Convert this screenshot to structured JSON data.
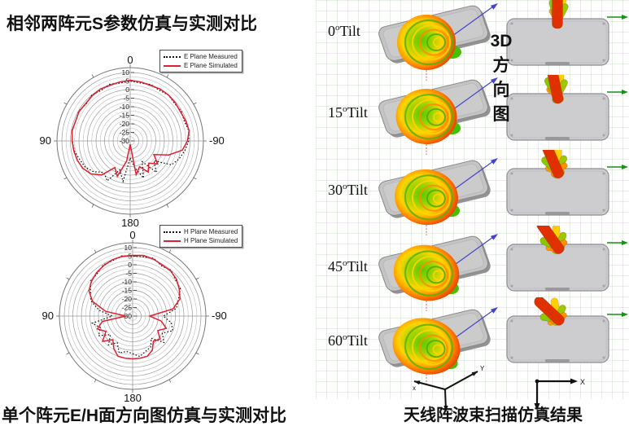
{
  "left": {
    "title": "相邻两阵元S参数仿真与实测对比",
    "caption": "单个阵元E/H面方向图仿真与实测对比"
  },
  "right": {
    "vertical_label": [
      "3D",
      "方",
      "向",
      "图"
    ],
    "caption": "天线阵波束扫描仿真结果",
    "tilt_angles": [
      "0",
      "15",
      "30",
      "45",
      "60"
    ],
    "degree_mark": "o",
    "tilt_suffix": "Tilt",
    "axes": {
      "iso": {
        "x": "x",
        "y": "Y",
        "z": "z"
      },
      "plan": {
        "x": "X",
        "y": "Y"
      },
      "beam_axis": "x"
    }
  },
  "colors": {
    "measured": "#111111",
    "simulated": "#e02030",
    "phone_gray": "#c4c4c4",
    "beam_hot": "#e03000",
    "beam_warm": "#ffd000",
    "beam_cool": "#8cc800",
    "arrow_blue": "#4444cc",
    "arrow_green": "#169016"
  },
  "chart_data": [
    {
      "type": "polar-line",
      "plane": "E",
      "angle_labels": {
        "top": "0",
        "left": "90",
        "right": "-90",
        "bottom": "180"
      },
      "radial_ticks": [
        10,
        5,
        0,
        -5,
        -10,
        -15,
        -20,
        -25,
        -30
      ],
      "r_range": [
        -30,
        10
      ],
      "grid_step_db": 2.5,
      "legend": [
        {
          "label": "E Plane Measured",
          "color": "#111111",
          "style": "dotted"
        },
        {
          "label": "E Plane Simulated",
          "color": "#e02030",
          "style": "solid"
        }
      ],
      "series": [
        {
          "name": "E Plane Measured",
          "points": [
            [
              -180,
              -20
            ],
            [
              -170,
              -14
            ],
            [
              -160,
              -7
            ],
            [
              -150,
              -16
            ],
            [
              -140,
              -6
            ],
            [
              -130,
              -12
            ],
            [
              -120,
              -2
            ],
            [
              -110,
              0.5
            ],
            [
              -100,
              2.5
            ],
            [
              -90,
              4.2
            ],
            [
              -80,
              4.8
            ],
            [
              -70,
              3.7
            ],
            [
              -60,
              4.6
            ],
            [
              -50,
              4
            ],
            [
              -40,
              4.9
            ],
            [
              -30,
              4.2
            ],
            [
              -20,
              5.1
            ],
            [
              -10,
              4.4
            ],
            [
              0,
              5
            ],
            [
              10,
              4.3
            ],
            [
              20,
              5.2
            ],
            [
              30,
              4.1
            ],
            [
              40,
              5
            ],
            [
              50,
              3.6
            ],
            [
              60,
              4.8
            ],
            [
              70,
              3.9
            ],
            [
              80,
              4.6
            ],
            [
              90,
              3.8
            ],
            [
              100,
              3.2
            ],
            [
              110,
              1.5
            ],
            [
              120,
              0.5
            ],
            [
              130,
              -2
            ],
            [
              140,
              -6
            ],
            [
              150,
              -3
            ],
            [
              160,
              -12
            ],
            [
              170,
              -6
            ],
            [
              180,
              -20
            ]
          ]
        },
        {
          "name": "E Plane Simulated",
          "points": [
            [
              -180,
              -28
            ],
            [
              -170,
              -10
            ],
            [
              -160,
              -14
            ],
            [
              -150,
              -9
            ],
            [
              -140,
              -13
            ],
            [
              -130,
              -9
            ],
            [
              -120,
              -14
            ],
            [
              -110,
              -6
            ],
            [
              -100,
              1
            ],
            [
              -90,
              3.5
            ],
            [
              -80,
              5
            ],
            [
              -70,
              4.5
            ],
            [
              -60,
              4
            ],
            [
              -50,
              4.5
            ],
            [
              -40,
              5
            ],
            [
              -30,
              5
            ],
            [
              -20,
              4.5
            ],
            [
              -10,
              5
            ],
            [
              0,
              5.5
            ],
            [
              10,
              5
            ],
            [
              20,
              4.5
            ],
            [
              30,
              5
            ],
            [
              40,
              4.5
            ],
            [
              50,
              4
            ],
            [
              60,
              4.5
            ],
            [
              70,
              4
            ],
            [
              80,
              4.5
            ],
            [
              90,
              4
            ],
            [
              100,
              3.5
            ],
            [
              110,
              3
            ],
            [
              120,
              2
            ],
            [
              130,
              0
            ],
            [
              140,
              -4
            ],
            [
              150,
              -12
            ],
            [
              160,
              -8
            ],
            [
              170,
              -18
            ],
            [
              180,
              -28
            ]
          ]
        }
      ]
    },
    {
      "type": "polar-line",
      "plane": "H",
      "angle_labels": {
        "top": "0",
        "left": "90",
        "right": "-90",
        "bottom": "180"
      },
      "radial_ticks": [
        10,
        5,
        0,
        -5,
        -10,
        -15,
        -20,
        -25,
        -30
      ],
      "r_range": [
        -30,
        10
      ],
      "grid_step_db": 2.5,
      "legend": [
        {
          "label": "H Plane Measured",
          "color": "#111111",
          "style": "dotted"
        },
        {
          "label": "H Plane Simulated",
          "color": "#e02030",
          "style": "solid"
        }
      ],
      "series": [
        {
          "name": "H Plane Measured",
          "points": [
            [
              -180,
              -8
            ],
            [
              -170,
              -6
            ],
            [
              -160,
              -8
            ],
            [
              -150,
              -9
            ],
            [
              -140,
              -13
            ],
            [
              -130,
              -6
            ],
            [
              -120,
              -10
            ],
            [
              -110,
              -5
            ],
            [
              -100,
              -7
            ],
            [
              -90,
              -12
            ],
            [
              -80,
              -4
            ],
            [
              -70,
              -1.5
            ],
            [
              -60,
              2.2
            ],
            [
              -50,
              2.8
            ],
            [
              -40,
              5
            ],
            [
              -30,
              3.8
            ],
            [
              -20,
              6
            ],
            [
              -10,
              5.2
            ],
            [
              0,
              5
            ],
            [
              10,
              5.8
            ],
            [
              20,
              4.4
            ],
            [
              30,
              4.5
            ],
            [
              40,
              2.3
            ],
            [
              50,
              2
            ],
            [
              60,
              -1.5
            ],
            [
              70,
              -4
            ],
            [
              80,
              -10
            ],
            [
              90,
              -18
            ],
            [
              100,
              -6
            ],
            [
              110,
              -10
            ],
            [
              120,
              -7
            ],
            [
              130,
              -13
            ],
            [
              140,
              -8
            ],
            [
              150,
              -12
            ],
            [
              160,
              -7
            ],
            [
              170,
              -9
            ],
            [
              180,
              -8
            ]
          ]
        },
        {
          "name": "H Plane Simulated",
          "points": [
            [
              -180,
              -5
            ],
            [
              -170,
              -5
            ],
            [
              -160,
              -5
            ],
            [
              -150,
              -7
            ],
            [
              -140,
              -11
            ],
            [
              -130,
              -9
            ],
            [
              -120,
              -13
            ],
            [
              -110,
              -9
            ],
            [
              -100,
              -13
            ],
            [
              -90,
              -20
            ],
            [
              -80,
              -6
            ],
            [
              -70,
              -0.5
            ],
            [
              -60,
              1.5
            ],
            [
              -50,
              3.5
            ],
            [
              -40,
              4.5
            ],
            [
              -30,
              4.5
            ],
            [
              -20,
              5.5
            ],
            [
              -10,
              6
            ],
            [
              0,
              5.5
            ],
            [
              10,
              5.5
            ],
            [
              20,
              5
            ],
            [
              30,
              4
            ],
            [
              40,
              3
            ],
            [
              50,
              1.5
            ],
            [
              60,
              -0.5
            ],
            [
              70,
              -5
            ],
            [
              80,
              -14
            ],
            [
              90,
              -26
            ],
            [
              100,
              -12
            ],
            [
              110,
              -8
            ],
            [
              120,
              -12
            ],
            [
              130,
              -7
            ],
            [
              140,
              -12
            ],
            [
              150,
              -8
            ],
            [
              160,
              -5
            ],
            [
              170,
              -5
            ],
            [
              180,
              -5
            ]
          ]
        }
      ]
    }
  ]
}
